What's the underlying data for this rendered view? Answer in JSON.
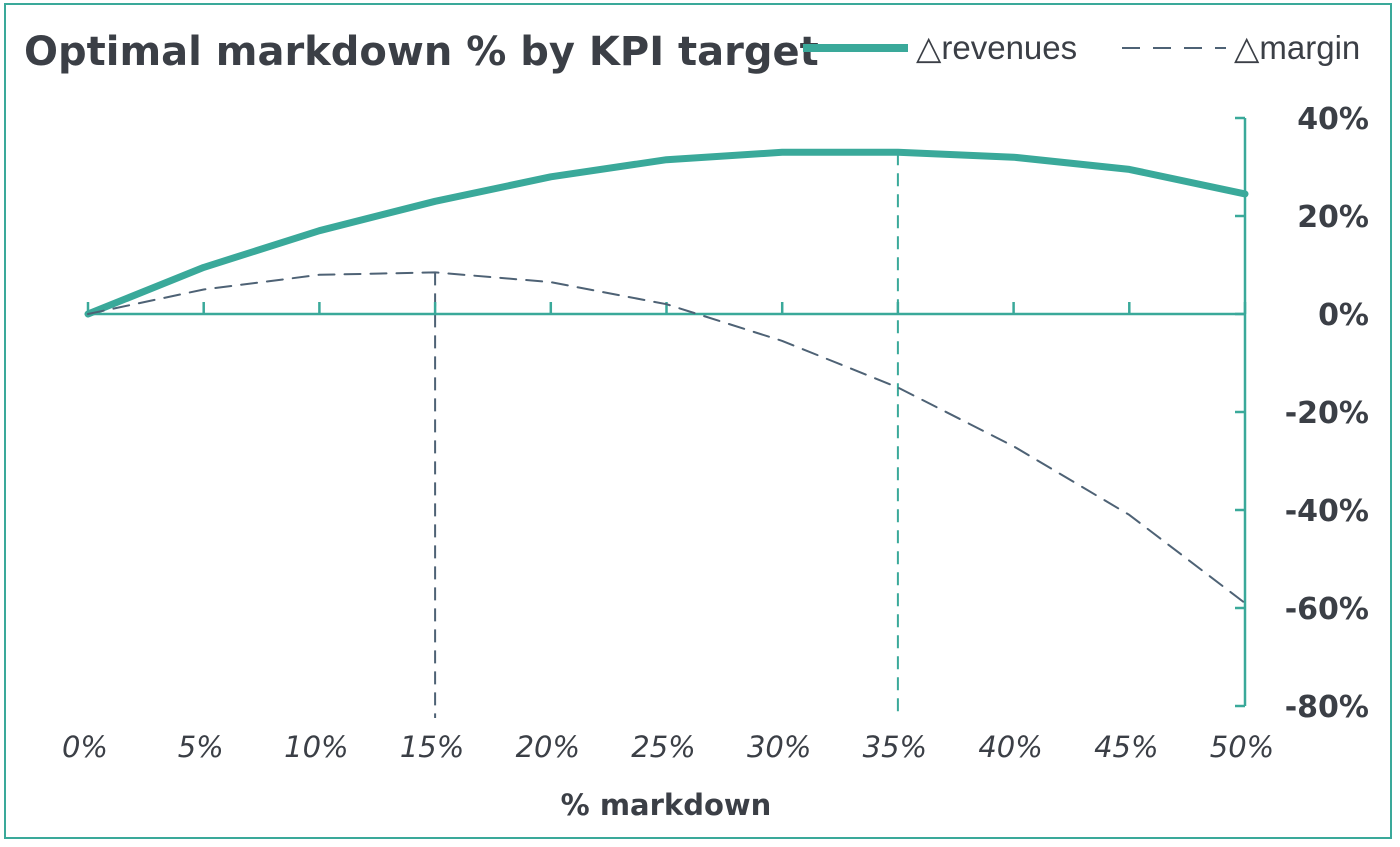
{
  "chart_data": {
    "type": "line",
    "title": "Optimal markdown % by KPI target",
    "xlabel": "% markdown",
    "ylabel": "",
    "x": [
      0,
      5,
      10,
      15,
      20,
      25,
      30,
      35,
      40,
      45,
      50
    ],
    "x_tick_labels": [
      "0%",
      "5%",
      "10%",
      "15%",
      "20%",
      "25%",
      "30%",
      "35%",
      "40%",
      "45%",
      "50%"
    ],
    "ylim": [
      -80,
      40
    ],
    "y_ticks": [
      40,
      20,
      0,
      -20,
      -40,
      -60,
      -80
    ],
    "y_tick_labels": [
      "40%",
      "20%",
      "0%",
      "-20%",
      "-40%",
      "-60%",
      "-80%"
    ],
    "y_axis_position": "right",
    "grid": false,
    "legend_position": "top-right",
    "series": [
      {
        "name": "△revenues",
        "style": "solid",
        "color": "#3aa99a",
        "values": [
          0,
          9.5,
          17,
          23,
          28,
          31.5,
          33,
          33,
          32,
          29.5,
          24.5
        ]
      },
      {
        "name": "△margin",
        "style": "dashed",
        "color": "#4e6275",
        "values": [
          0,
          5,
          8,
          8.5,
          6.5,
          2,
          -5.5,
          -15,
          -27,
          -41,
          -59
        ]
      }
    ],
    "reference_lines": [
      {
        "x": 15,
        "color": "#4e6275"
      },
      {
        "x": 35,
        "color": "#3aa99a"
      }
    ]
  }
}
